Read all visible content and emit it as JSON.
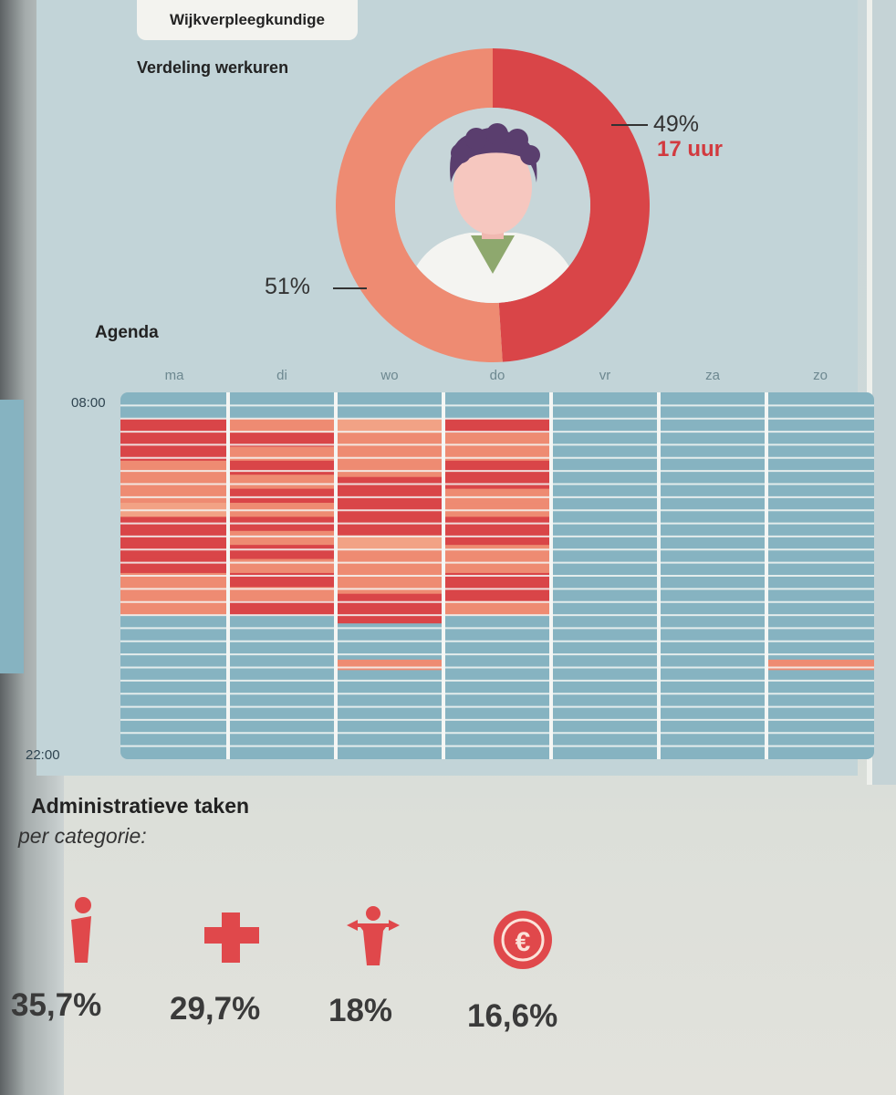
{
  "header": {
    "tag_label": "Wijkverpleegkundige"
  },
  "donut": {
    "title": "Verdeling werkuren",
    "right_pct": "49%",
    "right_hours": "17 uur",
    "left_pct": "51%"
  },
  "agenda": {
    "title": "Agenda",
    "start_time": "08:00",
    "end_time": "22:00"
  },
  "admin": {
    "title": "Administratieve taken",
    "subtitle": "per categorie:",
    "items": [
      {
        "icon": "info-icon",
        "pct": "35,7%"
      },
      {
        "icon": "medical-cross-icon",
        "pct": "29,7%"
      },
      {
        "icon": "person-arrows-icon",
        "pct": "18%"
      },
      {
        "icon": "euro-coin-icon",
        "pct": "16,6%"
      }
    ]
  },
  "colors": {
    "red": "#d94548",
    "salmon": "#ee8b72",
    "light_salmon": "#f2a285",
    "blue": "#86b3c1",
    "grid_line": "#f4f6f4"
  },
  "chart_data": [
    {
      "type": "pie",
      "title": "Verdeling werkuren",
      "labels": [
        "49%",
        "51%"
      ],
      "values": [
        49,
        51
      ],
      "annotations": [
        "17 uur"
      ]
    },
    {
      "type": "heatmap",
      "title": "Agenda",
      "columns": [
        "ma",
        "di",
        "wo",
        "do",
        "vr",
        "za",
        "zo"
      ],
      "time_range": [
        "08:00",
        "22:00"
      ],
      "busy_hours": [
        [
          9.0,
          16.5
        ],
        [
          9.0,
          16.5
        ],
        [
          9.0,
          16.8
        ],
        [
          9.0,
          16.5
        ],
        null,
        null,
        null
      ],
      "extra_blocks": [
        {
          "day": "wo",
          "from": 18.2,
          "to": 18.6
        },
        {
          "day": "zo",
          "from": 18.2,
          "to": 18.6
        }
      ]
    },
    {
      "type": "bar",
      "title": "Administratieve taken per categorie",
      "categories": [
        "info",
        "medisch",
        "persoon",
        "financieel"
      ],
      "values": [
        35.7,
        29.7,
        18,
        16.6
      ],
      "labels": [
        "35,7%",
        "29,7%",
        "18%",
        "16,6%"
      ]
    }
  ]
}
